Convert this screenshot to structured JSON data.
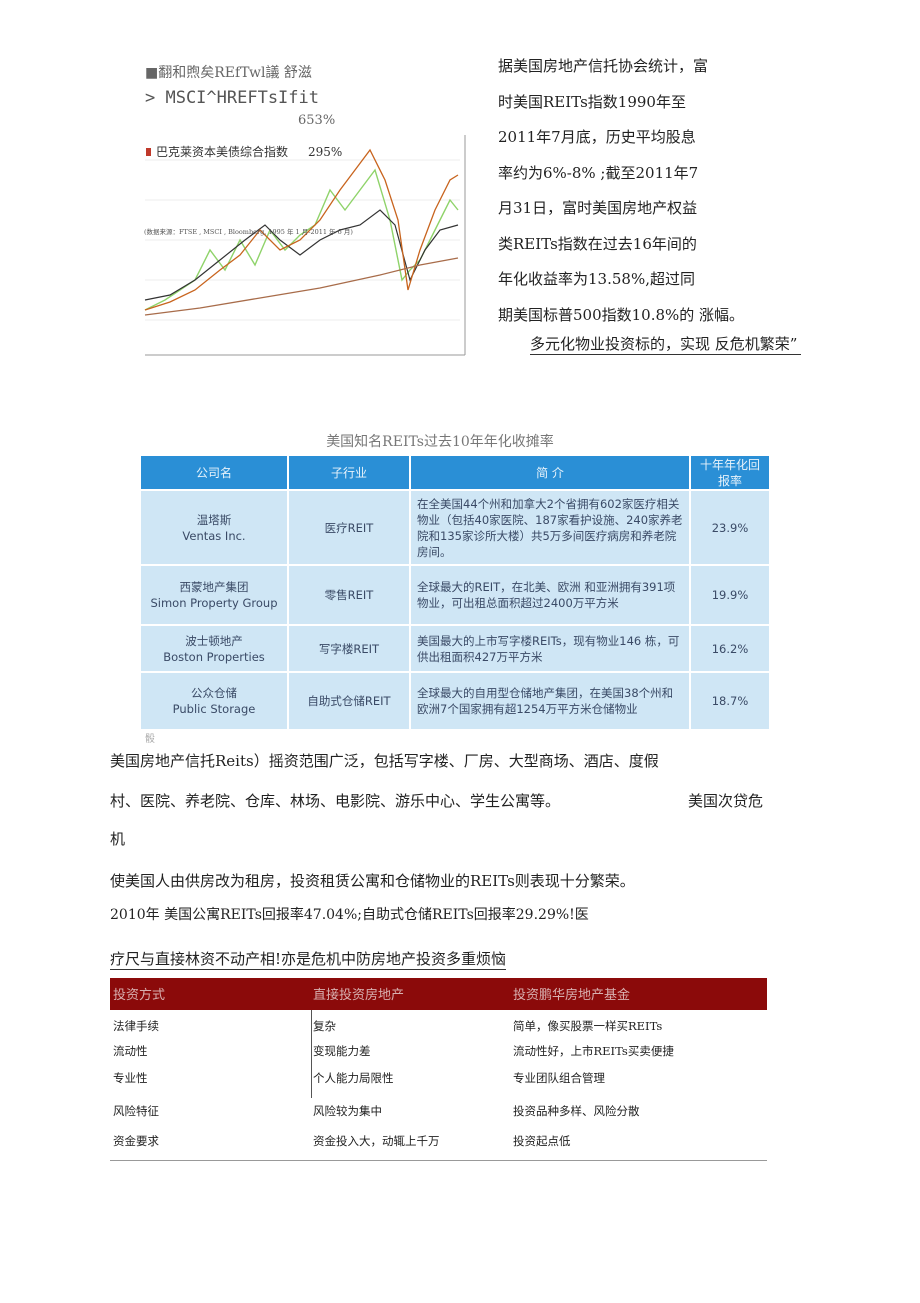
{
  "figure": {
    "legend_1": "■翻和煦矣REfTwl議 舒滋",
    "legend_2": "> MSCI^HREFTsIfit",
    "legend_2_value": "653%",
    "legend_3": "巴克莱资本美债综合指数",
    "legend_3_value": "295%",
    "source": "(数据来源：FTSE , MSCI , Bloomberg, 1995 年 1 月-2011 年 6 月)"
  },
  "side_text": {
    "lines": [
      "据美国房地产信托协会统计，富",
      "时美国REITs指数1990年至",
      "2011年7月底，历史平均股息",
      "率约为6%-8% ;截至2011年7",
      "月31日，富时美国房地产权益",
      "类REITs指数在过去16年间的",
      "年化收益率为13.58%,超过同",
      "期美国标普500指数10.8%的 涨幅。"
    ],
    "tagline": "多元化物业投资标的，实现 反危机繁荣”"
  },
  "table1": {
    "caption": "美国知名REITs过去10年年化收摊率",
    "header": [
      "公司名",
      "子行业",
      "简 介",
      "十年年化回报率"
    ],
    "rows": [
      [
        "温塔斯",
        "Ventas Inc.",
        "医疗REIT",
        "在全美国44个州和加拿大2个省拥有602家医疗相关物业（包括40家医院、187家看护设施、240家养老院和135家诊所大楼）共5万多间医疗病房和养老院房间。",
        "23.9%"
      ],
      [
        "西蒙地产集团",
        "Simon Property Group",
        "零售REIT",
        "全球最大的REIT，在北美、欧洲 和亚洲拥有391项物业，可出租总面积超过2400万平方米",
        "19.9%"
      ],
      [
        "波士顿地产",
        "Boston Properties",
        "写字楼REIT",
        "美国最大的上市写字楼REITs，现有物业146 栋，可供出租面积427万平方米",
        "16.2%"
      ],
      [
        "公众仓储",
        "Public Storage",
        "自助式仓储REIT",
        "全球最大的自用型仓储地产集团，在美国38个州和欧洲7个国家拥有超1254万平方米仓储物业",
        "18.7%"
      ]
    ]
  },
  "mark": "骰",
  "body": {
    "lines": [
      "美国房地产信托Reits）摇资范围广泛，包括写字楼、厂房、大型商场、酒店、度假",
      "村、医院、养老院、仓库、林场、电影院、游乐中心、学生公寓等。",
      "美国次贷危",
      "机",
      "使美国人由供房改为租房，投资租赁公寓和仓储物业的REITs则表现十分繁荣。",
      "2010年 美国公寓REITs回报率47.04%;自助式仓储REITs回报率29.29%!医",
      "疗尺与直接林资不动产相!亦是危机中防房地产投资多重烦恼"
    ]
  },
  "table2": {
    "header": [
      "投资方式",
      "直接投资房地产",
      "投资鹏华房地产基金"
    ],
    "rows": [
      [
        "法律手续",
        "复杂",
        "简单，像买股票一样买REITs"
      ],
      [
        "流动性",
        "变现能力差",
        "流动性好，上市REITs买卖便捷"
      ],
      [
        "专业性",
        "个人能力局限性",
        "专业团队组合管理"
      ],
      [
        "风险特征",
        "风险较为集中",
        "投资品种多样、风险分散"
      ],
      [
        "资金要求",
        "资金投入大，动辄上千万",
        "投资起点低"
      ]
    ]
  }
}
